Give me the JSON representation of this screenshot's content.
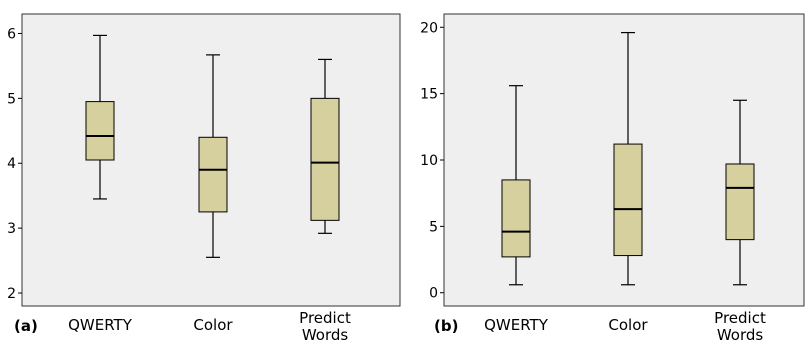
{
  "colors": {
    "plot_background": "#efefef",
    "box_fill": "#d6d09e",
    "stroke": "#000000"
  },
  "chart_data": [
    {
      "type": "boxplot",
      "panel_label": "(a)",
      "categories": [
        "QWERTY",
        "Color",
        "Predict Words"
      ],
      "ylim": [
        1.8,
        6.3
      ],
      "yticks": [
        2,
        3,
        4,
        5,
        6
      ],
      "boxes": [
        {
          "whisker_low": 3.45,
          "q1": 4.05,
          "median": 4.42,
          "q3": 4.95,
          "whisker_high": 5.97
        },
        {
          "whisker_low": 2.55,
          "q1": 3.25,
          "median": 3.9,
          "q3": 4.4,
          "whisker_high": 5.67
        },
        {
          "whisker_low": 2.92,
          "q1": 3.12,
          "median": 4.01,
          "q3": 5.0,
          "whisker_high": 5.6
        }
      ],
      "xlabel": "",
      "ylabel": ""
    },
    {
      "type": "boxplot",
      "panel_label": "(b)",
      "categories": [
        "QWERTY",
        "Color",
        "Predict Words"
      ],
      "ylim": [
        -1,
        21
      ],
      "yticks": [
        0,
        5,
        10,
        15,
        20
      ],
      "boxes": [
        {
          "whisker_low": 0.6,
          "q1": 2.7,
          "median": 4.6,
          "q3": 8.5,
          "whisker_high": 15.6
        },
        {
          "whisker_low": 0.6,
          "q1": 2.8,
          "median": 6.3,
          "q3": 11.2,
          "whisker_high": 19.6
        },
        {
          "whisker_low": 0.6,
          "q1": 4.0,
          "median": 7.9,
          "q3": 9.7,
          "whisker_high": 14.5
        }
      ],
      "xlabel": "",
      "ylabel": ""
    }
  ]
}
